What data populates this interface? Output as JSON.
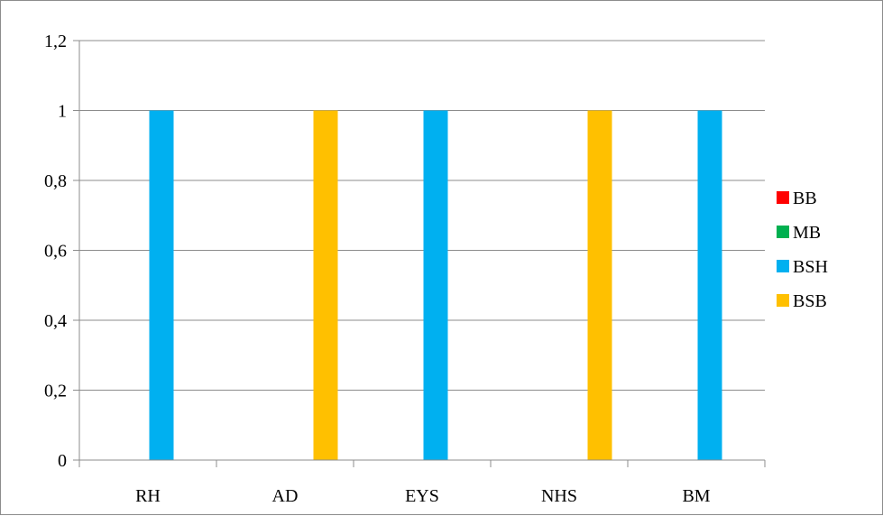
{
  "chart_data": {
    "type": "bar",
    "categories": [
      "RH",
      "AD",
      "EYS",
      "NHS",
      "BM"
    ],
    "series": [
      {
        "name": "BB",
        "color": "#ff0000",
        "values": [
          0,
          0,
          0,
          0,
          0
        ]
      },
      {
        "name": "MB",
        "color": "#00b050",
        "values": [
          0,
          0,
          0,
          0,
          0
        ]
      },
      {
        "name": "BSH",
        "color": "#00b0f0",
        "values": [
          1,
          0,
          1,
          0,
          1
        ]
      },
      {
        "name": "BSB",
        "color": "#ffc000",
        "values": [
          0,
          1,
          0,
          1,
          0
        ]
      }
    ],
    "ylim": [
      0,
      1.2
    ],
    "yticks": [
      "0",
      "0,2",
      "0,4",
      "0,6",
      "0,8",
      "1",
      "1,2"
    ],
    "ytick_values": [
      0,
      0.2,
      0.4,
      0.6,
      0.8,
      1.0,
      1.2
    ],
    "grid": true,
    "legend_position": "right"
  }
}
